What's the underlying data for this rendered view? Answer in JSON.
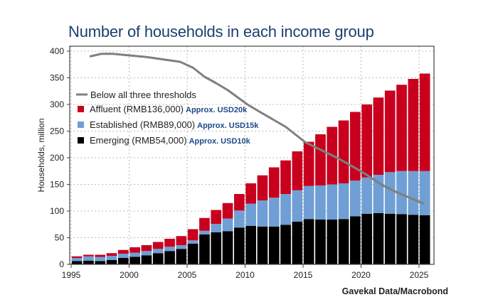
{
  "chart_data": {
    "type": "bar",
    "stacked": true,
    "title": "Number of households in each income group",
    "xlabel": "",
    "ylabel": "Households, million",
    "source": "Gavekal Data/Macrobond",
    "xlim": [
      1995,
      2026.6
    ],
    "ylim": [
      0,
      400
    ],
    "xticks": [
      1995,
      2000,
      2005,
      2010,
      2015,
      2020,
      2025
    ],
    "yticks": [
      0,
      50,
      100,
      150,
      200,
      250,
      300,
      350,
      400
    ],
    "grid": true,
    "legend_position": "top-left",
    "categories": [
      1995,
      1996,
      1997,
      1998,
      1999,
      2000,
      2001,
      2002,
      2003,
      2004,
      2005,
      2006,
      2007,
      2008,
      2009,
      2010,
      2011,
      2012,
      2013,
      2014,
      2015,
      2016,
      2017,
      2018,
      2019,
      2020,
      2021,
      2022,
      2023,
      2024,
      2025
    ],
    "series": [
      {
        "name": "Emerging (RMB54,000)",
        "note": "Approx. USD10k",
        "color": "#000000",
        "values": [
          6,
          7,
          6,
          8,
          12,
          14,
          17,
          21,
          25,
          29,
          39,
          56,
          60,
          62,
          69,
          72,
          71,
          71,
          74,
          80,
          85,
          84,
          84,
          85,
          90,
          95,
          96,
          95,
          94,
          93,
          92
        ]
      },
      {
        "name": "Established (RMB89,000)",
        "note": "Approx. USD15k",
        "color": "#6f9fd4",
        "values": [
          6,
          8,
          8,
          8,
          8,
          8,
          8,
          8,
          8,
          7,
          6,
          7,
          16,
          24,
          32,
          42,
          49,
          54,
          58,
          59,
          62,
          64,
          66,
          67,
          67,
          68,
          72,
          78,
          81,
          82,
          83
        ]
      },
      {
        "name": "Affluent (RMB136,000)",
        "note": "Approx. USD20k",
        "color": "#c8001e",
        "values": [
          3,
          3,
          4,
          5,
          7,
          10,
          11,
          13,
          15,
          17,
          21,
          24,
          26,
          29,
          31,
          38,
          47,
          57,
          63,
          73,
          83,
          96,
          108,
          118,
          129,
          137,
          145,
          153,
          162,
          173,
          183
        ]
      }
    ],
    "line": {
      "name": "Below all three thresholds",
      "color": "#7f7f7f",
      "x": [
        1996.6,
        1997.6,
        1998.6,
        2001.5,
        2004.4,
        2005.5,
        2006.5,
        2007.5,
        2008.5,
        2010.2,
        2011.2,
        2013.5,
        2015.2,
        2018.1,
        2020.2,
        2021.8,
        2023.0,
        2025.4
      ],
      "y": [
        390,
        395,
        395,
        389,
        380,
        369,
        352,
        340,
        327,
        300,
        287,
        258,
        229,
        198,
        172,
        149,
        136,
        114
      ]
    }
  }
}
